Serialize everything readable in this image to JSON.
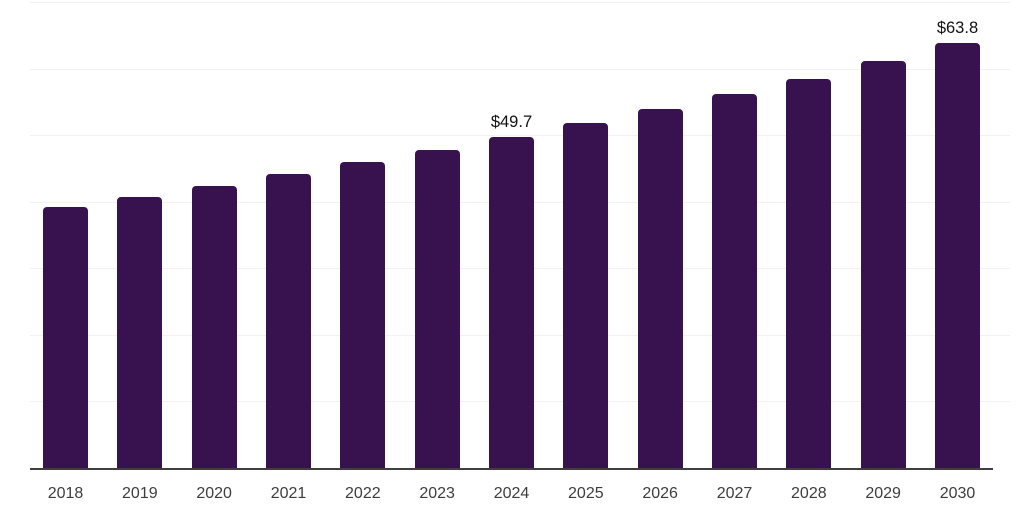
{
  "chart_data": {
    "type": "bar",
    "title": "",
    "xlabel": "",
    "ylabel": "",
    "categories": [
      "2018",
      "2019",
      "2020",
      "2021",
      "2022",
      "2023",
      "2024",
      "2025",
      "2026",
      "2027",
      "2028",
      "2029",
      "2030"
    ],
    "values": [
      39.2,
      40.7,
      42.4,
      44.2,
      45.9,
      47.7,
      49.7,
      51.8,
      54.0,
      56.2,
      58.5,
      61.2,
      63.8
    ],
    "unit_prefix": "$",
    "data_labels": [
      {
        "category": "2024",
        "text": "$49.7"
      },
      {
        "category": "2030",
        "text": "$63.8"
      }
    ],
    "ylim": [
      0,
      70
    ],
    "gridline_values": [
      10,
      20,
      30,
      40,
      50,
      60,
      70
    ],
    "grid": true,
    "legend": false,
    "colors": {
      "bar": "#38124F",
      "gridline": "#F2F2F2",
      "axis_line": "#3F3F3F",
      "tick_label": "#3D3D3D",
      "data_label": "#121212",
      "background": "#FFFFFF"
    }
  }
}
